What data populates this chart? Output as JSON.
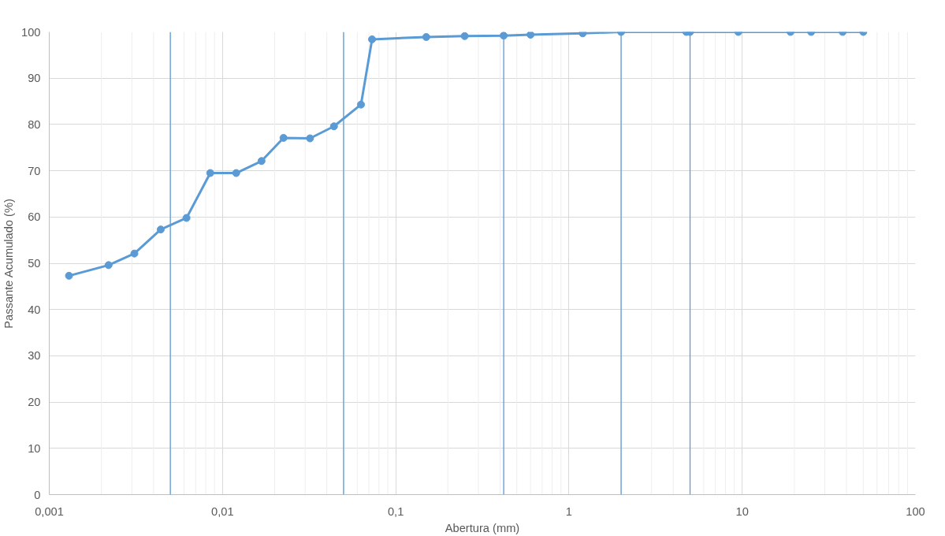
{
  "chart_data": {
    "type": "line",
    "xlabel": "Abertura (mm)",
    "ylabel": "Passante Acumulado (%)",
    "x": [
      0.0013,
      0.0022,
      0.0031,
      0.0044,
      0.0062,
      0.0085,
      0.012,
      0.0168,
      0.0225,
      0.032,
      0.044,
      0.063,
      0.073,
      0.15,
      0.25,
      0.42,
      0.6,
      1.2,
      2,
      4.76,
      5,
      9.5,
      19,
      25,
      38,
      50
    ],
    "series": [
      {
        "color": "#5b9bd5",
        "values": [
          47.3,
          49.6,
          52.1,
          57.3,
          59.8,
          69.5,
          69.5,
          72.1,
          77.1,
          77.0,
          79.6,
          84.3,
          98.4,
          98.9,
          99.1,
          99.2,
          99.4,
          99.7,
          100,
          100,
          100,
          100,
          100,
          100,
          100,
          100
        ]
      }
    ],
    "log": "x",
    "xlim": [
      0.001,
      100
    ],
    "xticks": [
      {
        "value": 0.001,
        "label": "0,001"
      },
      {
        "value": 0.01,
        "label": "0,01"
      },
      {
        "value": 0.1,
        "label": "0,1"
      },
      1,
      10,
      100
    ],
    "ylim": [
      0,
      100
    ],
    "yticks": [
      0,
      10,
      20,
      30,
      40,
      50,
      60,
      70,
      80,
      90,
      100
    ],
    "ref_lines": [
      {
        "axis": "x",
        "value": 0.005,
        "color": "#5b9bd5"
      },
      {
        "axis": "x",
        "value": 0.05,
        "color": "#5b9bd5"
      },
      {
        "axis": "x",
        "value": 0.42,
        "color": "#5b9bd5"
      },
      {
        "axis": "x",
        "value": 2,
        "color": "#5b9bd5"
      },
      {
        "axis": "x",
        "value": 5,
        "color": "#5b9bd5"
      }
    ],
    "grid": true,
    "marker": "circle",
    "line_style": "solid"
  }
}
